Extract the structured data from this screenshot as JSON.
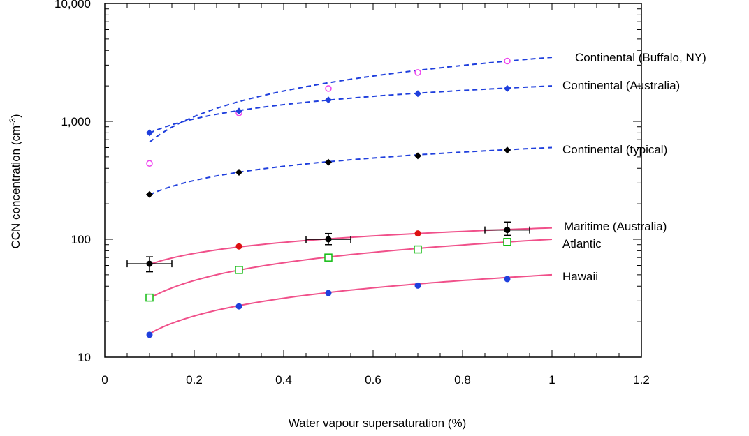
{
  "chart_data": {
    "type": "scatter",
    "title": "",
    "xlabel": "Water vapour supersaturation (%)",
    "ylabel_main": "CCN concentration (cm",
    "ylabel_sup": "-3",
    "ylabel_close": ")",
    "xlim": [
      0,
      1.2
    ],
    "ylim": [
      10,
      10000
    ],
    "yscale": "log",
    "x_ticks": [
      0,
      0.2,
      0.4,
      0.6,
      0.8,
      1,
      1.2
    ],
    "x_tick_labels": [
      "0",
      "0.2",
      "0.4",
      "0.6",
      "0.8",
      "1",
      "1.2"
    ],
    "y_ticks": [
      10,
      100,
      1000,
      10000
    ],
    "y_tick_labels": [
      "10",
      "100",
      "1,000",
      "10,000"
    ],
    "grid": false,
    "legend": "inline labels at right end of each curve",
    "series": [
      {
        "name": "Continental (Buffalo, NY)",
        "color": "#ee44ee",
        "line_color": "#1f3fdd",
        "marker": "open-circle",
        "line_style": "dashed",
        "x": [
          0.1,
          0.3,
          0.5,
          0.7,
          0.9
        ],
        "y": [
          440,
          1180,
          1900,
          2600,
          3250
        ],
        "fit": {
          "x": [
            0.1,
            1.0
          ],
          "a": 3500,
          "b": 0.72
        }
      },
      {
        "name": "Continental (Australia)",
        "color": "#1f3fdd",
        "line_color": "#1f3fdd",
        "marker": "filled-diamond",
        "line_style": "dashed",
        "x": [
          0.1,
          0.3,
          0.5,
          0.7,
          0.9
        ],
        "y": [
          800,
          1220,
          1520,
          1720,
          1900
        ],
        "fit": {
          "x": [
            0.1,
            1.0
          ],
          "a": 2000,
          "b": 0.4
        }
      },
      {
        "name": "Continental (typical)",
        "color": "#000000",
        "line_color": "#1f3fdd",
        "marker": "filled-diamond",
        "line_style": "dashed",
        "x": [
          0.1,
          0.3,
          0.5,
          0.7,
          0.9
        ],
        "y": [
          240,
          370,
          450,
          510,
          570
        ],
        "fit": {
          "x": [
            0.1,
            1.0
          ],
          "a": 600,
          "b": 0.4
        }
      },
      {
        "name": "Maritime (Australia)",
        "color": "#dd1111",
        "line_color": "#f0508a",
        "marker": "filled-circle",
        "line_style": "solid",
        "x": [
          0.1,
          0.3,
          0.5,
          0.7,
          0.9
        ],
        "y": [
          62,
          87,
          100,
          112,
          120
        ],
        "fit": {
          "x": [
            0.1,
            1.0
          ],
          "a": 125,
          "b": 0.31
        },
        "error_points": [
          {
            "x": 0.1,
            "y": 62,
            "xerr": 0.05,
            "ylow": 53,
            "yhigh": 71
          },
          {
            "x": 0.5,
            "y": 100,
            "xerr": 0.05,
            "ylow": 90,
            "yhigh": 112
          },
          {
            "x": 0.9,
            "y": 120,
            "xerr": 0.05,
            "ylow": 108,
            "yhigh": 140
          }
        ]
      },
      {
        "name": "Atlantic",
        "color": "#11bb11",
        "line_color": "#f0508a",
        "marker": "open-square",
        "line_style": "solid",
        "x": [
          0.1,
          0.3,
          0.5,
          0.7,
          0.9
        ],
        "y": [
          32,
          55,
          70,
          82,
          95
        ],
        "fit": {
          "x": [
            0.1,
            1.0
          ],
          "a": 100,
          "b": 0.5
        }
      },
      {
        "name": "Hawaii",
        "color": "#1f3fdd",
        "line_color": "#f0508a",
        "marker": "filled-circle",
        "line_style": "solid",
        "x": [
          0.1,
          0.3,
          0.5,
          0.7,
          0.9
        ],
        "y": [
          15.5,
          27,
          35,
          40.5,
          46
        ],
        "fit": {
          "x": [
            0.1,
            1.0
          ],
          "a": 50,
          "b": 0.5
        }
      }
    ]
  }
}
